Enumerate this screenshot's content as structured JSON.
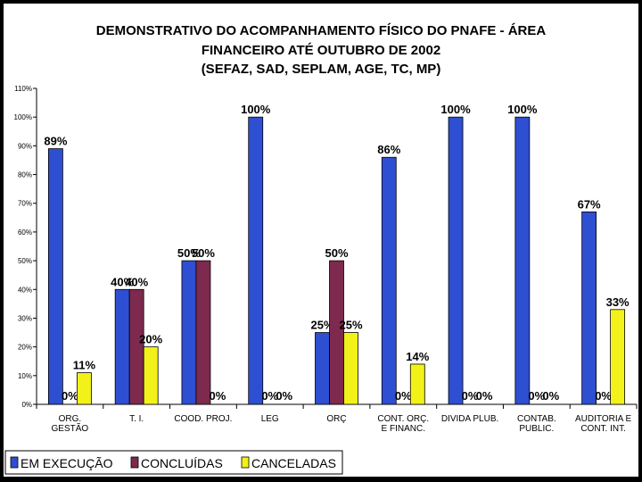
{
  "title_lines": [
    "DEMONSTRATIVO DO ACOMPANHAMENTO FÍSICO DO PNAFE - ÁREA",
    "FINANCEIRO ATÉ OUTUBRO DE 2002",
    "(SEFAZ, SAD, SEPLAM, AGE, TC, MP)"
  ],
  "chart_data": {
    "type": "bar",
    "categories": [
      [
        "ORG.",
        "GESTÃO"
      ],
      [
        "T. I."
      ],
      [
        "COOD. PROJ."
      ],
      [
        "LEG"
      ],
      [
        "ORÇ"
      ],
      [
        "CONT. ORÇ.",
        "E FINANC."
      ],
      [
        "DIVIDA PLUB."
      ],
      [
        "CONTAB.",
        "PUBLIC."
      ],
      [
        "AUDITORIA E",
        "CONT. INT."
      ]
    ],
    "series": [
      {
        "name": "EM EXECUÇÃO",
        "color": "#2e4fd1",
        "values": [
          89,
          40,
          50,
          100,
          25,
          86,
          100,
          100,
          67
        ],
        "labels": [
          "89%",
          "40%",
          "50%",
          "100%",
          "25%",
          "86%",
          "100%",
          "100%",
          "67%"
        ]
      },
      {
        "name": "CONCLUÍDAS",
        "color": "#7d2a4e",
        "values": [
          0,
          40,
          50,
          0,
          50,
          0,
          0,
          0,
          0
        ],
        "labels": [
          "0%",
          "40%",
          "50%",
          "0%",
          "50%",
          "0%",
          "0%",
          "0%",
          "0%"
        ]
      },
      {
        "name": "CANCELADAS",
        "color": "#f2f21a",
        "values": [
          11,
          20,
          0,
          0,
          25,
          14,
          0,
          0,
          33
        ],
        "labels": [
          "11%",
          "20%",
          "0%",
          "0%",
          "25%",
          "14%",
          "0%",
          "0%",
          "33%"
        ]
      }
    ],
    "yticks": [
      "0%",
      "10%",
      "20%",
      "30%",
      "40%",
      "50%",
      "60%",
      "70%",
      "80%",
      "90%",
      "100%",
      "110%"
    ],
    "ylim": [
      0,
      110
    ],
    "grid": false,
    "legend": "bottom-left"
  }
}
